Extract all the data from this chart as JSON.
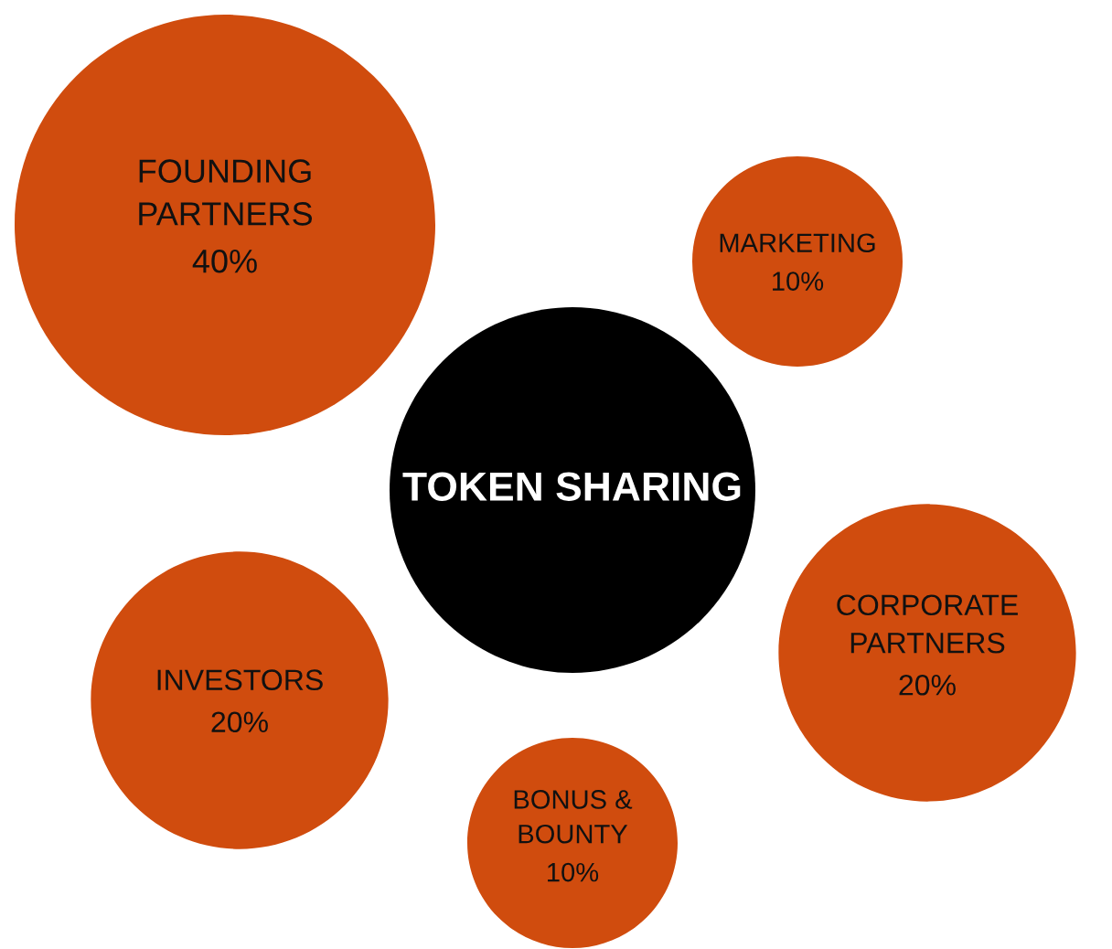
{
  "chart_data": {
    "type": "other",
    "title": "TOKEN SHARING",
    "categories": [
      "FOUNDING PARTNERS",
      "MARKETING",
      "CORPORATE PARTNERS",
      "INVESTORS",
      "BONUS & BOUNTY"
    ],
    "values": [
      40,
      10,
      20,
      20,
      10
    ],
    "value_labels": [
      "40%",
      "10%",
      "20%",
      "20%",
      "10%"
    ],
    "colors": [
      "#d04c0e",
      "#d04c0e",
      "#d04c0e",
      "#d04c0e",
      "#d04c0e"
    ]
  }
}
